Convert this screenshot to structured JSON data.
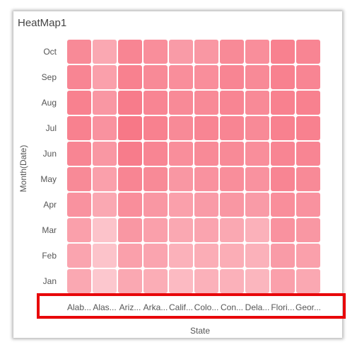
{
  "widget": {
    "title": "HeatMap1"
  },
  "colors": {
    "low": "#fdd0d6",
    "high": "#f77887",
    "highlight": "#e8070a"
  },
  "chart_data": {
    "type": "heatmap",
    "title": "HeatMap1",
    "xlabel": "State",
    "ylabel": "Month(Date)",
    "x_categories": [
      "Alab...",
      "Alas...",
      "Ariz...",
      "Arka...",
      "Calif...",
      "Colo...",
      "Con...",
      "Dela...",
      "Flori...",
      "Geor..."
    ],
    "y_categories": [
      "Oct",
      "Sep",
      "Aug",
      "Jul",
      "Jun",
      "May",
      "Apr",
      "Mar",
      "Feb",
      "Jan"
    ],
    "value_range": [
      0,
      1
    ],
    "values": [
      [
        0.8,
        0.45,
        0.85,
        0.75,
        0.6,
        0.65,
        0.8,
        0.75,
        0.9,
        0.85
      ],
      [
        0.85,
        0.55,
        0.9,
        0.8,
        0.75,
        0.75,
        0.85,
        0.8,
        0.9,
        0.85
      ],
      [
        0.9,
        0.65,
        0.95,
        0.85,
        0.8,
        0.8,
        0.85,
        0.8,
        0.9,
        0.9
      ],
      [
        0.9,
        0.7,
        1.0,
        0.9,
        0.8,
        0.85,
        0.85,
        0.8,
        0.9,
        0.9
      ],
      [
        0.85,
        0.65,
        0.95,
        0.85,
        0.75,
        0.8,
        0.8,
        0.75,
        0.85,
        0.85
      ],
      [
        0.8,
        0.55,
        0.85,
        0.8,
        0.65,
        0.7,
        0.75,
        0.7,
        0.85,
        0.8
      ],
      [
        0.7,
        0.45,
        0.75,
        0.65,
        0.55,
        0.6,
        0.65,
        0.6,
        0.75,
        0.7
      ],
      [
        0.55,
        0.15,
        0.65,
        0.55,
        0.45,
        0.5,
        0.45,
        0.35,
        0.7,
        0.65
      ],
      [
        0.5,
        0.15,
        0.55,
        0.5,
        0.35,
        0.4,
        0.4,
        0.35,
        0.6,
        0.55
      ],
      [
        0.45,
        0.1,
        0.45,
        0.4,
        0.25,
        0.35,
        0.35,
        0.3,
        0.55,
        0.45
      ]
    ],
    "legend": "none",
    "grid": false
  }
}
